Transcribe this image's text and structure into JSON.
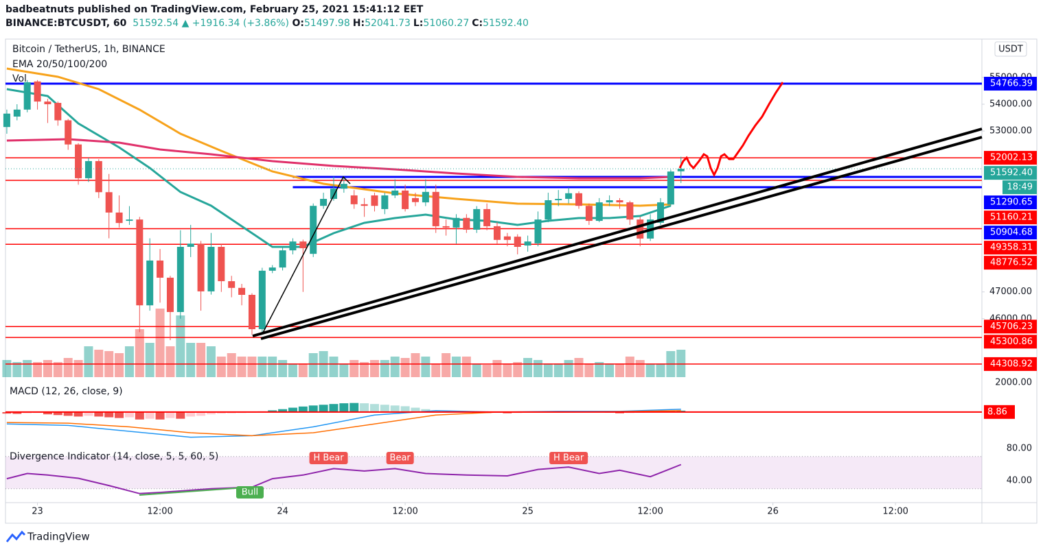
{
  "header": {
    "publisher": "badbeatnuts published on TradingView.com, February 25, 2021 15:41:12 EET",
    "symbol": "BINANCE:BTCUSDT, 60",
    "price": "51592.54",
    "change": "▲ +1916.34 (+3.86%)",
    "ohlc": [
      {
        "label": "O:",
        "value": "51497.98"
      },
      {
        "label": "H:",
        "value": "52041.73"
      },
      {
        "label": "L:",
        "value": "51060.27"
      },
      {
        "label": "C:",
        "value": "51592.40"
      }
    ],
    "brand": "TradingView"
  },
  "chart_data": {
    "type": "candlestick",
    "title": "Bitcoin / TetherUS, 1h, BINANCE",
    "indicator": "EMA 20/50/100/200",
    "volume_label": "Vol",
    "currency": "USDT",
    "xlim": [
      -3.13,
      92.46
    ],
    "ylim": [
      43821,
      56302
    ],
    "xticks": [
      {
        "value": 0,
        "label": "23"
      },
      {
        "value": 12,
        "label": "12:00"
      },
      {
        "value": 24,
        "label": "24"
      },
      {
        "value": 36,
        "label": "12:00"
      },
      {
        "value": 48,
        "label": "25"
      },
      {
        "value": 60,
        "label": "12:00"
      },
      {
        "value": 72,
        "label": "26"
      },
      {
        "value": 84,
        "label": "12:00"
      }
    ],
    "yticks": [
      {
        "value": 55000,
        "label": "55000.00"
      },
      {
        "value": 54000,
        "label": "54000.00"
      },
      {
        "value": 53000,
        "label": "53000.00"
      },
      {
        "value": 47000,
        "label": "47000.00"
      },
      {
        "value": 46000,
        "label": "46000.00"
      }
    ],
    "x": [
      -3,
      -2,
      -1,
      0,
      1,
      2,
      3,
      4,
      5,
      6,
      7,
      8,
      9,
      10,
      11,
      12,
      13,
      14,
      15,
      16,
      17,
      18,
      19,
      20,
      21,
      22,
      23,
      24,
      25,
      26,
      27,
      28,
      29,
      30,
      31,
      32,
      33,
      34,
      35,
      36,
      37,
      38,
      39,
      40,
      41,
      42,
      43,
      44,
      45,
      46,
      47,
      48,
      49,
      50,
      51,
      52,
      53,
      54,
      55,
      56,
      57,
      58,
      59,
      60,
      61,
      62,
      63
    ],
    "open": [
      53150,
      53540,
      53800,
      54850,
      54100,
      54050,
      53400,
      52500,
      51240,
      51880,
      50720,
      49960,
      49650,
      49700,
      46500,
      48170,
      47530,
      46250,
      48680,
      48800,
      47020,
      48680,
      47400,
      47150,
      46890,
      45610,
      47790,
      47910,
      48550,
      48880,
      48420,
      50210,
      50470,
      50850,
      50600,
      50270,
      50600,
      50090,
      50600,
      50780,
      50500,
      50340,
      50730,
      49450,
      49400,
      49760,
      49320,
      50090,
      49450,
      49070,
      49060,
      48730,
      48810,
      49700,
      50420,
      50470,
      50680,
      50210,
      49650,
      50340,
      50420,
      50340,
      49700,
      48990,
      49580,
      50260,
      51497.98
    ],
    "high": [
      53800,
      54000,
      54900,
      54900,
      54200,
      54100,
      53450,
      52550,
      52000,
      51950,
      51400,
      50600,
      50200,
      49800,
      49000,
      48600,
      47600,
      49300,
      49500,
      48900,
      49200,
      48800,
      47600,
      47300,
      46950,
      47900,
      48000,
      48700,
      49000,
      48950,
      50300,
      50700,
      51300,
      51300,
      50800,
      50500,
      50700,
      50700,
      51200,
      51000,
      50700,
      51200,
      51000,
      49700,
      49900,
      49900,
      50200,
      50300,
      49600,
      49200,
      49150,
      49100,
      50000,
      50700,
      50800,
      50900,
      50750,
      50300,
      50500,
      50600,
      50500,
      50400,
      49800,
      49900,
      50500,
      51560,
      52041.73
    ],
    "low": [
      52900,
      53400,
      53700,
      53800,
      53300,
      53200,
      52300,
      51000,
      51100,
      50500,
      49000,
      49400,
      49500,
      45500,
      46300,
      46600,
      45200,
      46000,
      48300,
      46300,
      46900,
      47000,
      46800,
      46500,
      45400,
      45500,
      47700,
      47800,
      48400,
      47000,
      48300,
      50100,
      50400,
      50700,
      50100,
      49800,
      50000,
      49900,
      50500,
      50000,
      50200,
      50200,
      49200,
      49100,
      48800,
      49200,
      49200,
      49300,
      48800,
      48700,
      48400,
      48500,
      48700,
      49600,
      50200,
      50300,
      50100,
      49500,
      49600,
      50200,
      50100,
      49500,
      48700,
      48900,
      49500,
      50200,
      51060.27
    ],
    "close": [
      53650,
      53800,
      54820,
      54100,
      54000,
      53400,
      52500,
      51240,
      51880,
      50720,
      49960,
      49570,
      49700,
      46500,
      48170,
      47530,
      46250,
      48680,
      48800,
      47020,
      48680,
      47400,
      47150,
      46890,
      45610,
      47790,
      47910,
      48550,
      48880,
      48630,
      50210,
      50470,
      50850,
      51030,
      50270,
      50210,
      50210,
      50600,
      50780,
      50090,
      50350,
      50730,
      49450,
      49400,
      49760,
      49320,
      50090,
      49450,
      48940,
      48940,
      48680,
      48880,
      49700,
      50420,
      50470,
      50680,
      50210,
      49650,
      50340,
      50420,
      50340,
      49700,
      48990,
      49700,
      50340,
      51490,
      51592.4
    ],
    "volume": [
      25,
      22,
      25,
      22,
      25,
      22,
      28,
      25,
      45,
      40,
      38,
      35,
      45,
      70,
      50,
      100,
      45,
      90,
      50,
      50,
      45,
      30,
      35,
      30,
      30,
      30,
      30,
      25,
      20,
      20,
      35,
      38,
      30,
      20,
      25,
      22,
      25,
      25,
      30,
      28,
      35,
      30,
      20,
      35,
      30,
      30,
      20,
      18,
      25,
      20,
      22,
      28,
      25,
      20,
      20,
      25,
      28,
      20,
      22,
      20,
      20,
      30,
      25,
      20,
      20,
      38,
      40
    ],
    "vlim": [
      0,
      100
    ],
    "colors": {
      "up": "#26a69a",
      "down": "#ef5350"
    },
    "ema": [
      {
        "color": "#26a69a",
        "x": [
          -3,
          1,
          4,
          8,
          11,
          14,
          17,
          20,
          23,
          26,
          29,
          32,
          35,
          38,
          41,
          44,
          47,
          50,
          53,
          56,
          59,
          62
        ],
        "values": [
          54563,
          54307,
          53284,
          52389,
          51621,
          50726,
          50215,
          49448,
          48680,
          48680,
          49192,
          49576,
          49755,
          49882,
          49703,
          49652,
          49499,
          49652,
          49755,
          49755,
          49831,
          50215
        ]
      },
      {
        "color": "#f7a21b",
        "x": [
          -3,
          2,
          6,
          10,
          14,
          18,
          23,
          28,
          35,
          41,
          47,
          53,
          59,
          62
        ],
        "values": [
          55330,
          55023,
          54563,
          53795,
          52900,
          52261,
          51494,
          51033,
          50675,
          50471,
          50292,
          50266,
          50215,
          50266
        ]
      },
      {
        "color": "#e0306a",
        "x": [
          -3,
          3,
          8,
          12,
          17,
          23,
          29,
          35,
          41,
          47,
          53,
          59,
          62
        ],
        "values": [
          52645,
          52696,
          52568,
          52312,
          52133,
          51877,
          51698,
          51570,
          51417,
          51289,
          51238,
          51238,
          51289
        ]
      }
    ],
    "levels": [
      {
        "value": 54766.39,
        "color": "#0000ff"
      },
      {
        "value": 52002.13,
        "color": "#ff0000"
      },
      {
        "value": 51290.65,
        "color": "#0000ff",
        "start": 25
      },
      {
        "value": 51160.21,
        "color": "#ff0000"
      },
      {
        "value": 50904.68,
        "color": "#0000ff",
        "start": 25
      },
      {
        "value": 49358.31,
        "color": "#ff0000"
      },
      {
        "value": 48776.52,
        "color": "#ff0000"
      },
      {
        "value": 45706.23,
        "color": "#ff0000"
      },
      {
        "value": 45300.86,
        "color": "#ff0000"
      },
      {
        "value": 44308.92,
        "color": "#ff0000"
      }
    ],
    "last_price": {
      "value": 51592.4,
      "label": "51592.40"
    },
    "countdown": "18:49",
    "macd": {
      "title": "MACD (12, 26, close, 9)",
      "ylim": [
        -1953,
        2279
      ],
      "yticks": [
        {
          "value": 2000,
          "label": "2000.00"
        }
      ],
      "level": 8.86,
      "histogram": [
        -100,
        -120,
        -80,
        -60,
        -150,
        -200,
        -250,
        -300,
        -250,
        -300,
        -350,
        -400,
        -350,
        -500,
        -450,
        -500,
        -400,
        -450,
        -300,
        -250,
        -150,
        -100,
        -80,
        -60,
        -40,
        50,
        120,
        200,
        300,
        380,
        450,
        500,
        550,
        600,
        620,
        600,
        550,
        500,
        450,
        400,
        300,
        200,
        100,
        50,
        20,
        -20,
        -40,
        -60,
        -50,
        -80,
        -60,
        -20,
        30,
        50,
        40,
        20,
        10,
        20,
        30,
        -30,
        -80,
        -60,
        -40,
        20,
        60,
        80,
        100
      ],
      "lines": [
        {
          "color": "#2196f3",
          "x": [
            -3,
            3,
            9,
            15,
            21,
            27,
            33,
            39,
            45,
            51,
            57,
            63
          ],
          "values": [
            -800,
            -900,
            -1300,
            -1700,
            -1600,
            -1000,
            -200,
            100,
            0,
            50,
            50,
            200
          ]
        },
        {
          "color": "#ff6d00",
          "x": [
            -3,
            3,
            9,
            15,
            21,
            27,
            33,
            39,
            45,
            51,
            57,
            63
          ],
          "values": [
            -700,
            -750,
            -1000,
            -1400,
            -1600,
            -1400,
            -800,
            -200,
            0,
            0,
            30,
            100
          ]
        }
      ]
    },
    "divergence": {
      "title": "Divergence Indicator (14, close, 5, 5, 60, 5)",
      "ylim": [
        12.8,
        87.7
      ],
      "yticks": [
        {
          "value": 80,
          "label": "80.00"
        },
        {
          "value": 40,
          "label": "40.00"
        }
      ],
      "band": [
        30,
        70
      ],
      "color": "#8e24aa",
      "x": [
        -3,
        -1,
        1,
        4,
        7,
        10,
        12,
        17,
        21,
        23,
        26,
        29,
        32,
        35,
        38,
        42,
        46,
        49,
        52,
        55,
        57,
        60,
        62,
        63
      ],
      "values": [
        42.5,
        49,
        47,
        43,
        34,
        24,
        25.5,
        30,
        32,
        42.5,
        47,
        55,
        52,
        55,
        49,
        47,
        46,
        54,
        57,
        49,
        53,
        45,
        55,
        60
      ],
      "signals": [
        {
          "label": "H Bear",
          "x": 28.5,
          "kind": "bear"
        },
        {
          "label": "Bear",
          "x": 35.5,
          "kind": "bear"
        },
        {
          "label": "H Bear",
          "x": 52,
          "kind": "bear"
        },
        {
          "label": "Bull",
          "x": 20.8,
          "kind": "bull"
        }
      ]
    }
  }
}
